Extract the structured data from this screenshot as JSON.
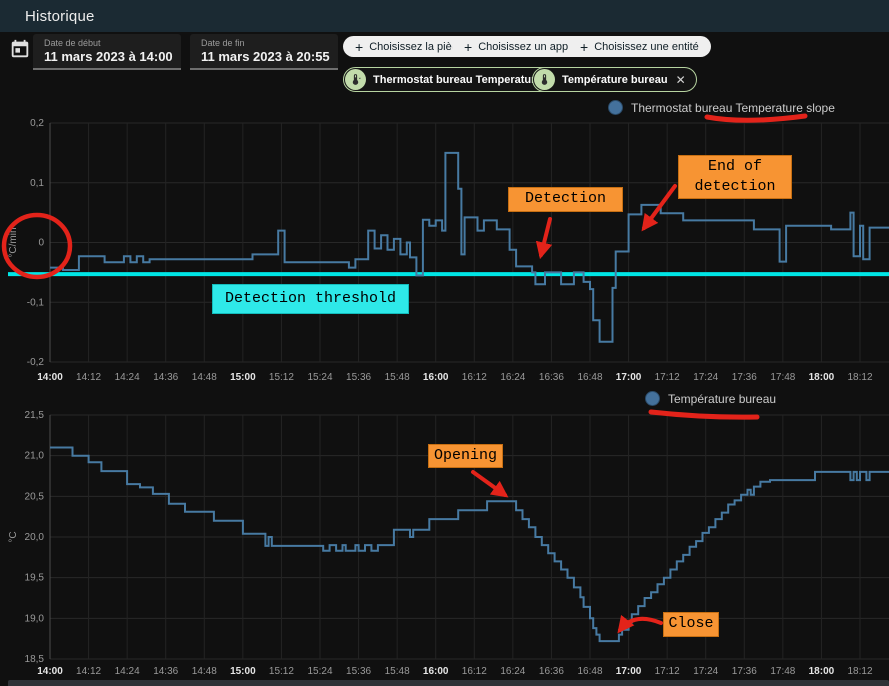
{
  "header": {
    "title": "Historique"
  },
  "toolbar": {
    "date_start": {
      "label": "Date de début",
      "value": "11 mars 2023 à 14:00"
    },
    "date_end": {
      "label": "Date de fin",
      "value": "11 mars 2023 à 20:55"
    },
    "plus_glyph": "+",
    "chip_close_glyph": "✕",
    "picker_chips": [
      {
        "label": "Choisissez la pièce",
        "color": "#f8b571"
      },
      {
        "label": "Choisissez un appareil",
        "color": "#8ed0f2"
      },
      {
        "label": "Choisissez une entité",
        "color": "#bddaa5"
      }
    ],
    "entity_chips": [
      {
        "label": "Thermostat bureau Temperature slope"
      },
      {
        "label": "Température bureau"
      }
    ]
  },
  "annotations": {
    "detection": "Detection",
    "end_of_detection": "End of detection",
    "detection_threshold": "Detection threshold",
    "opening": "Opening",
    "close": "Close",
    "ink_color": "#e3231a",
    "label_bg": "#f79433",
    "threshold_label_bg": "#2ee9e9"
  },
  "chart_data": [
    {
      "type": "line",
      "name": "Thermostat bureau Temperature slope",
      "legend": "Thermostat bureau Temperature slope",
      "ylabel": "°C/min",
      "ylim": [
        -0.2,
        0.2
      ],
      "line_color": "#477aa2",
      "grid": true,
      "legend_position": "top-right",
      "yticks": [
        {
          "v": 0.2,
          "label": "0,2"
        },
        {
          "v": 0.1,
          "label": "0,1"
        },
        {
          "v": 0,
          "label": "0"
        },
        {
          "v": -0.1,
          "label": "-0,1"
        },
        {
          "v": -0.2,
          "label": "-0,2"
        }
      ],
      "xtick_labels": [
        "14:00",
        "14:12",
        "14:24",
        "14:36",
        "14:48",
        "15:00",
        "15:12",
        "15:24",
        "15:36",
        "15:48",
        "16:00",
        "16:12",
        "16:24",
        "16:36",
        "16:48",
        "17:00",
        "17:12",
        "17:24",
        "17:36",
        "17:48",
        "18:00",
        "18:12"
      ],
      "xtick_step_min": 12,
      "x_max_min": 261,
      "threshold": {
        "value": -0.053,
        "color": "#00e6e6",
        "label": "Detection threshold"
      },
      "series": [
        [
          0,
          -0.042
        ],
        [
          4,
          -0.046
        ],
        [
          9,
          -0.023
        ],
        [
          17,
          -0.033
        ],
        [
          23,
          -0.023
        ],
        [
          25,
          -0.033
        ],
        [
          27,
          -0.023
        ],
        [
          29,
          -0.033
        ],
        [
          31,
          -0.028
        ],
        [
          63,
          -0.02
        ],
        [
          71,
          0.02
        ],
        [
          73,
          -0.033
        ],
        [
          93,
          -0.042
        ],
        [
          95,
          -0.028
        ],
        [
          99,
          0.02
        ],
        [
          101,
          -0.01
        ],
        [
          103,
          0.012
        ],
        [
          105,
          -0.012
        ],
        [
          107,
          0.006
        ],
        [
          109,
          -0.02
        ],
        [
          111,
          0.0
        ],
        [
          112,
          -0.025
        ],
        [
          114,
          -0.055
        ],
        [
          116,
          0.038
        ],
        [
          118,
          0.028
        ],
        [
          120,
          0.037
        ],
        [
          122,
          0.02
        ],
        [
          123,
          0.15
        ],
        [
          127,
          0.09
        ],
        [
          128,
          -0.02
        ],
        [
          129,
          0.042
        ],
        [
          133,
          0.02
        ],
        [
          135,
          0.037
        ],
        [
          139,
          0.022
        ],
        [
          143,
          -0.012
        ],
        [
          145,
          -0.04
        ],
        [
          150,
          -0.05
        ],
        [
          151,
          -0.07
        ],
        [
          154,
          -0.05
        ],
        [
          159,
          -0.07
        ],
        [
          163,
          -0.05
        ],
        [
          166,
          -0.066
        ],
        [
          168,
          -0.078
        ],
        [
          169,
          -0.13
        ],
        [
          171,
          -0.166
        ],
        [
          175,
          -0.076
        ],
        [
          176,
          -0.015
        ],
        [
          180,
          0.047
        ],
        [
          184,
          0.063
        ],
        [
          190,
          0.049
        ],
        [
          197,
          0.037
        ],
        [
          219,
          0.022
        ],
        [
          227,
          -0.032
        ],
        [
          229,
          0.028
        ],
        [
          243,
          0.022
        ],
        [
          249,
          0.05
        ],
        [
          250,
          -0.023
        ],
        [
          252,
          0.028
        ],
        [
          253,
          -0.028
        ],
        [
          255,
          0.025
        ],
        [
          261,
          0.025
        ]
      ]
    },
    {
      "type": "line",
      "name": "Température bureau",
      "legend": "Température bureau",
      "ylabel": "°C",
      "ylim": [
        18.5,
        21.5
      ],
      "line_color": "#477aa2",
      "grid": true,
      "legend_position": "top-right",
      "yticks": [
        {
          "v": 21.5,
          "label": "21,5"
        },
        {
          "v": 21.0,
          "label": "21,0"
        },
        {
          "v": 20.5,
          "label": "20,5"
        },
        {
          "v": 20.0,
          "label": "20,0"
        },
        {
          "v": 19.5,
          "label": "19,5"
        },
        {
          "v": 19.0,
          "label": "19,0"
        },
        {
          "v": 18.5,
          "label": "18,5"
        }
      ],
      "xtick_labels": [
        "14:00",
        "14:12",
        "14:24",
        "14:36",
        "14:48",
        "15:00",
        "15:12",
        "15:24",
        "15:36",
        "15:48",
        "16:00",
        "16:12",
        "16:24",
        "16:36",
        "16:48",
        "17:00",
        "17:12",
        "17:24",
        "17:36",
        "17:48",
        "18:00",
        "18:12"
      ],
      "xtick_step_min": 12,
      "x_max_min": 261,
      "series": [
        [
          0,
          21.1
        ],
        [
          7,
          21.0
        ],
        [
          12,
          20.92
        ],
        [
          16,
          20.81
        ],
        [
          24,
          20.65
        ],
        [
          28,
          20.61
        ],
        [
          32,
          20.53
        ],
        [
          37,
          20.41
        ],
        [
          42,
          20.31
        ],
        [
          51,
          20.2
        ],
        [
          60,
          20.04
        ],
        [
          67,
          19.89
        ],
        [
          68,
          20.0
        ],
        [
          69,
          19.89
        ],
        [
          85,
          19.83
        ],
        [
          87,
          19.9
        ],
        [
          89,
          19.83
        ],
        [
          91,
          19.9
        ],
        [
          92,
          19.83
        ],
        [
          95,
          19.9
        ],
        [
          96,
          19.83
        ],
        [
          98,
          19.9
        ],
        [
          100,
          19.83
        ],
        [
          102,
          19.9
        ],
        [
          107,
          20.09
        ],
        [
          112,
          20.0
        ],
        [
          113,
          20.09
        ],
        [
          118,
          20.22
        ],
        [
          127,
          20.33
        ],
        [
          136,
          20.44
        ],
        [
          145,
          20.33
        ],
        [
          147,
          20.22
        ],
        [
          149,
          20.12
        ],
        [
          151,
          20.0
        ],
        [
          153,
          19.9
        ],
        [
          155,
          19.8
        ],
        [
          157,
          19.7
        ],
        [
          159,
          19.6
        ],
        [
          161,
          19.5
        ],
        [
          163,
          19.38
        ],
        [
          165,
          19.26
        ],
        [
          166,
          19.14
        ],
        [
          168,
          19.0
        ],
        [
          169,
          18.88
        ],
        [
          170,
          18.8
        ],
        [
          171,
          18.72
        ],
        [
          177,
          18.8
        ],
        [
          178,
          18.86
        ],
        [
          180,
          18.95
        ],
        [
          181,
          19.05
        ],
        [
          183,
          19.15
        ],
        [
          185,
          19.25
        ],
        [
          187,
          19.32
        ],
        [
          189,
          19.42
        ],
        [
          191,
          19.5
        ],
        [
          193,
          19.6
        ],
        [
          195,
          19.7
        ],
        [
          197,
          19.78
        ],
        [
          199,
          19.88
        ],
        [
          201,
          19.95
        ],
        [
          203,
          20.05
        ],
        [
          205,
          20.12
        ],
        [
          207,
          20.22
        ],
        [
          209,
          20.3
        ],
        [
          211,
          20.4
        ],
        [
          213,
          20.45
        ],
        [
          215,
          20.52
        ],
        [
          217,
          20.58
        ],
        [
          218,
          20.52
        ],
        [
          219,
          20.62
        ],
        [
          221,
          20.68
        ],
        [
          224,
          20.7
        ],
        [
          238,
          20.8
        ],
        [
          249,
          20.7
        ],
        [
          250,
          20.8
        ],
        [
          251,
          20.7
        ],
        [
          252,
          20.8
        ],
        [
          254,
          20.7
        ],
        [
          255,
          20.8
        ],
        [
          261,
          20.8
        ]
      ]
    }
  ]
}
